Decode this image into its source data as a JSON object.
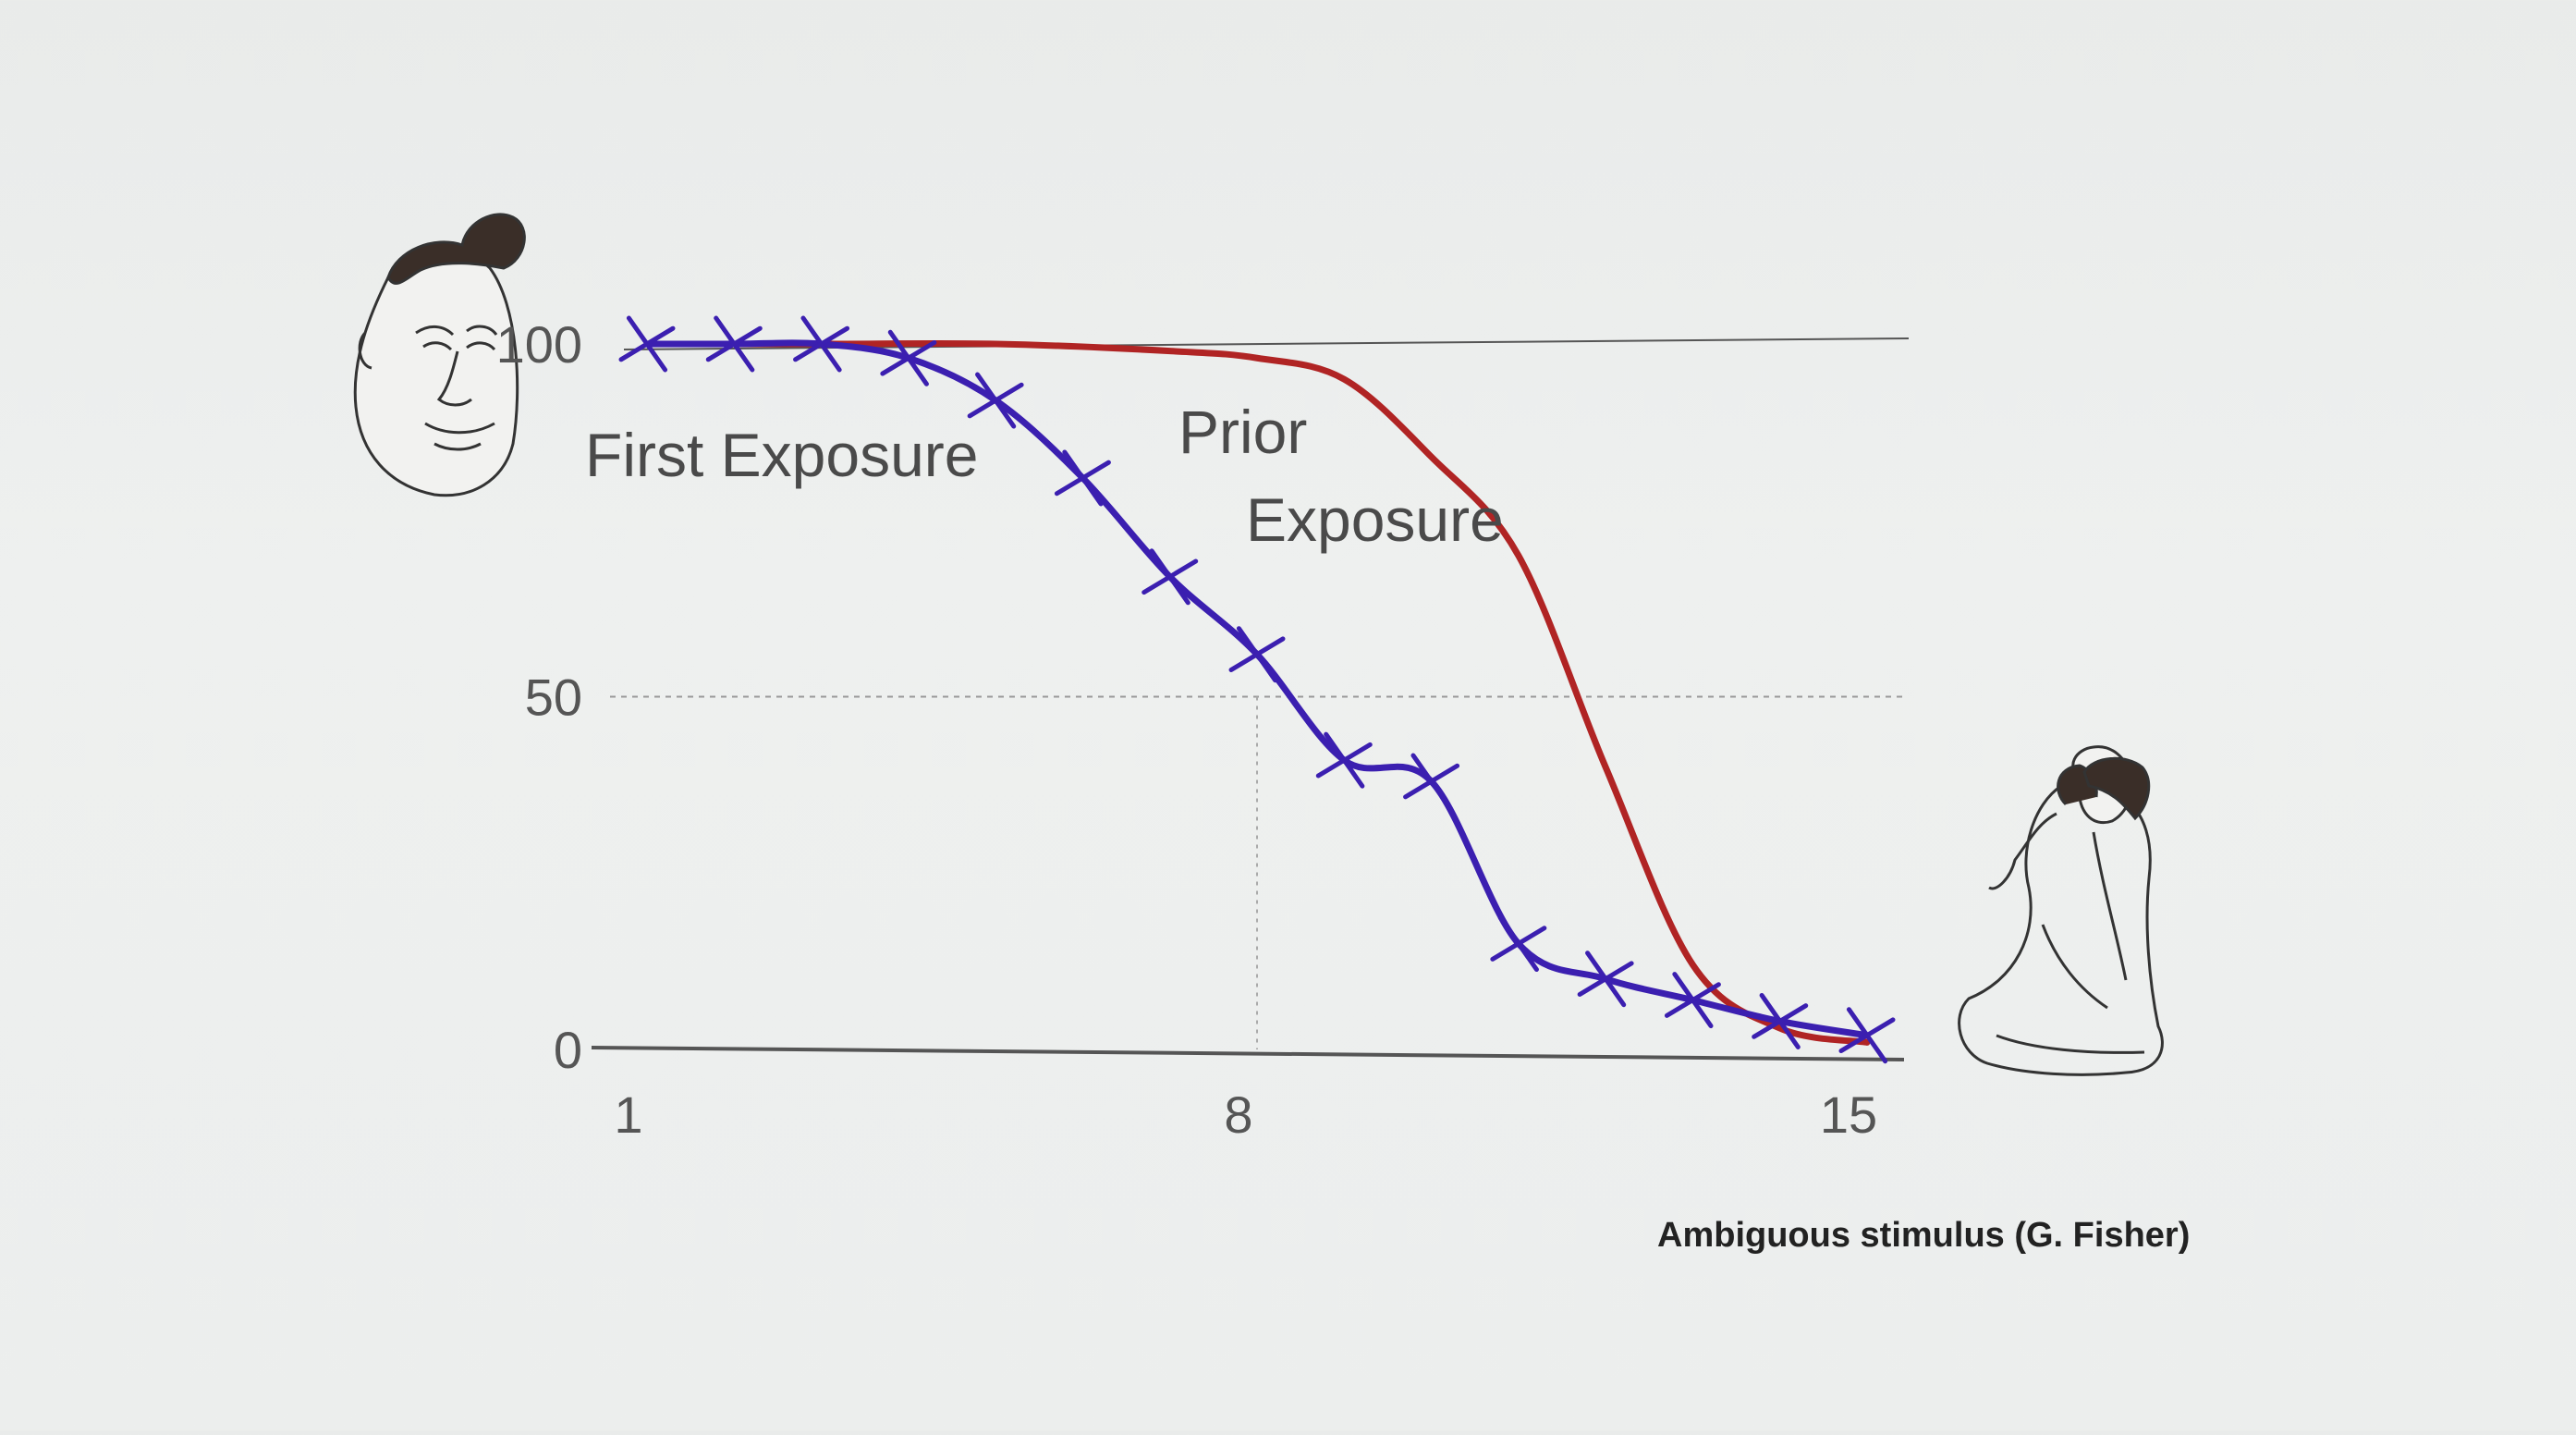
{
  "chart_data": {
    "type": "line",
    "xlabel": "",
    "ylabel": "",
    "xlim": [
      1,
      15
    ],
    "ylim": [
      0,
      100
    ],
    "x_ticks": [
      "1",
      "8",
      "15"
    ],
    "y_ticks": [
      "0",
      "50",
      "100"
    ],
    "grid": "dashed reference lines at y=50 and x=8",
    "credit": "Ambiguous stimulus (G. Fisher)",
    "series": [
      {
        "name": "First Exposure",
        "color": "#3b1fb0",
        "marker": "cross",
        "x": [
          1,
          2,
          3,
          4,
          5,
          6,
          7,
          8,
          9,
          10,
          11,
          12,
          13,
          14,
          15
        ],
        "y": [
          100,
          100,
          100,
          98,
          92,
          81,
          67,
          56,
          41,
          38,
          15,
          10,
          7,
          4,
          2
        ]
      },
      {
        "name": "Prior Exposure",
        "color": "#b02424",
        "marker": "none",
        "x": [
          1,
          3,
          5,
          7,
          8,
          9,
          10,
          11,
          12,
          13,
          14,
          15
        ],
        "y": [
          100,
          100,
          100,
          99,
          98,
          95,
          84,
          70,
          40,
          12,
          3,
          1
        ]
      }
    ],
    "annotations": {
      "first_exposure_label": "First Exposure",
      "prior_label_line1": "Prior",
      "prior_label_line2": "Exposure"
    },
    "images": {
      "left": "man-face-caricature",
      "right": "kneeling-woman-sketch"
    }
  }
}
